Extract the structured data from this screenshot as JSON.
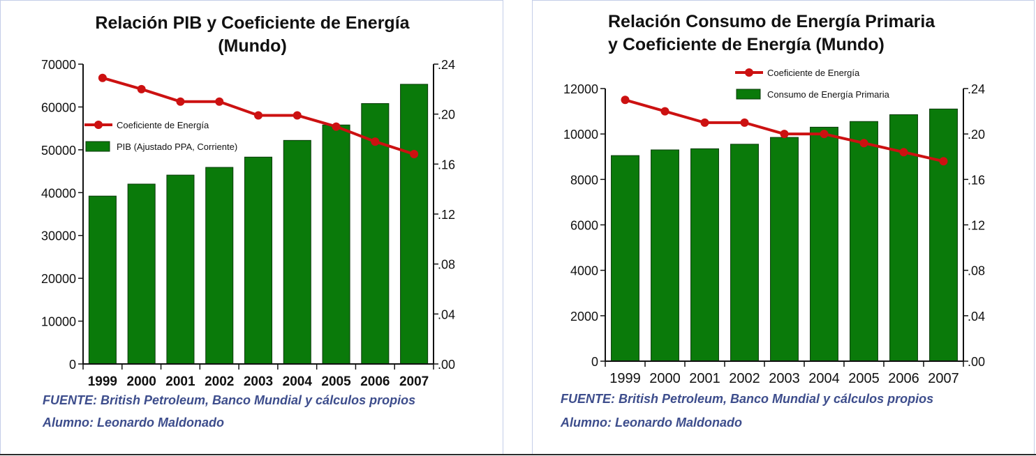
{
  "chart_data": [
    {
      "type": "bar",
      "title_lines": [
        "Relación PIB y Coeficiente de Energía",
        "(Mundo)"
      ],
      "categories": [
        "1999",
        "2000",
        "2001",
        "2002",
        "2003",
        "2004",
        "2005",
        "2006",
        "2007"
      ],
      "series": [
        {
          "name": "Coeficiente de Energía",
          "type": "line",
          "axis": "right",
          "color": "#cc1111",
          "values": [
            0.229,
            0.22,
            0.21,
            0.21,
            0.199,
            0.199,
            0.19,
            0.178,
            0.168
          ]
        },
        {
          "name": "PIB (Ajustado PPA, Corriente)",
          "type": "bar",
          "axis": "left",
          "color": "#0a7a0a",
          "values": [
            39200,
            42000,
            44100,
            45900,
            48300,
            52200,
            55800,
            60800,
            65300
          ]
        }
      ],
      "y_left": {
        "min": 0,
        "max": 70000,
        "ticks": [
          "0",
          "10000",
          "20000",
          "30000",
          "40000",
          "50000",
          "60000",
          "70000"
        ]
      },
      "y_right": {
        "min": 0,
        "max": 0.24,
        "ticks": [
          ".00",
          ".04",
          ".08",
          ".12",
          ".16",
          ".20",
          ".24"
        ]
      },
      "legend_position": "middle-left",
      "grid": false,
      "source": "FUENTE: British Petroleum, Banco Mundial y cálculos propios",
      "author": "Alumno: Leonardo Maldonado"
    },
    {
      "type": "bar",
      "title_lines": [
        "Relación Consumo de Energía Primaria",
        "y Coeficiente de Energía (Mundo)"
      ],
      "categories": [
        "1999",
        "2000",
        "2001",
        "2002",
        "2003",
        "2004",
        "2005",
        "2006",
        "2007"
      ],
      "series": [
        {
          "name": "Coeficiente de Energía",
          "type": "line",
          "axis": "right",
          "color": "#cc1111",
          "values": [
            0.23,
            0.22,
            0.21,
            0.21,
            0.2,
            0.2,
            0.192,
            0.184,
            0.176
          ]
        },
        {
          "name": "Consumo de Energía Primaria",
          "type": "bar",
          "axis": "left",
          "color": "#0a7a0a",
          "values": [
            9050,
            9300,
            9350,
            9550,
            9850,
            10300,
            10550,
            10850,
            11100
          ]
        }
      ],
      "y_left": {
        "min": 0,
        "max": 12000,
        "ticks": [
          "0",
          "2000",
          "4000",
          "6000",
          "8000",
          "10000",
          "12000"
        ]
      },
      "y_right": {
        "min": 0,
        "max": 0.24,
        "ticks": [
          ".00",
          ".04",
          ".08",
          ".12",
          ".16",
          ".20",
          ".24"
        ]
      },
      "legend_position": "top",
      "grid": false,
      "source": "FUENTE: British Petroleum, Banco Mundial y cálculos propios",
      "author": "Alumno: Leonardo Maldonado"
    }
  ]
}
